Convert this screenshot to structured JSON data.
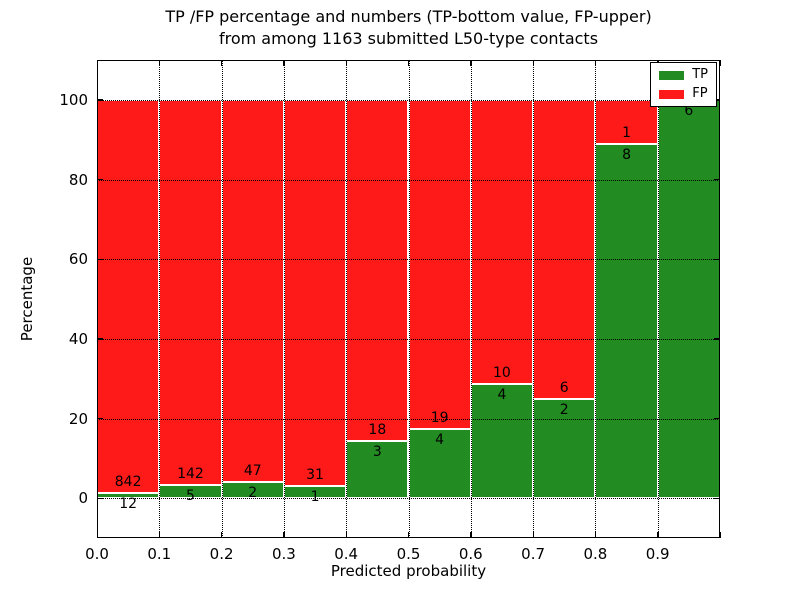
{
  "figure": {
    "background": "#ffffff"
  },
  "chart_data": {
    "type": "bar",
    "stacked": true,
    "title": "TP /FP percentage and numbers (TP-bottom value, FP-upper)\nfrom among 1163 submitted L50-type contacts",
    "xlabel": "Predicted probability",
    "ylabel": "Percentage",
    "xlim": [
      0.0,
      1.0
    ],
    "ylim": [
      -10,
      110
    ],
    "x_ticks": [
      {
        "v": 0.0,
        "label": "0.0"
      },
      {
        "v": 0.1,
        "label": "0.1"
      },
      {
        "v": 0.2,
        "label": "0.2"
      },
      {
        "v": 0.3,
        "label": "0.3"
      },
      {
        "v": 0.4,
        "label": "0.4"
      },
      {
        "v": 0.5,
        "label": "0.5"
      },
      {
        "v": 0.6,
        "label": "0.6"
      },
      {
        "v": 0.7,
        "label": "0.7"
      },
      {
        "v": 0.8,
        "label": "0.8"
      },
      {
        "v": 0.9,
        "label": "0.9"
      },
      {
        "v": 1.0,
        "label": ""
      }
    ],
    "y_ticks": [
      0,
      20,
      40,
      60,
      80,
      100
    ],
    "grid": {
      "style": "dotted",
      "color": "#000000",
      "x_values": [
        0.1,
        0.2,
        0.3,
        0.4,
        0.5,
        0.6,
        0.7,
        0.8,
        0.9
      ],
      "y_values": [
        0,
        20,
        40,
        60,
        80,
        100
      ]
    },
    "series": [
      {
        "name": "TP",
        "color": "#228b22"
      },
      {
        "name": "FP",
        "color": "#ff1a1a"
      }
    ],
    "bins": [
      {
        "range": [
          0.0,
          0.1
        ],
        "tp": 12,
        "fp": 842
      },
      {
        "range": [
          0.1,
          0.2
        ],
        "tp": 5,
        "fp": 142
      },
      {
        "range": [
          0.2,
          0.3
        ],
        "tp": 2,
        "fp": 47
      },
      {
        "range": [
          0.3,
          0.4
        ],
        "tp": 1,
        "fp": 31
      },
      {
        "range": [
          0.4,
          0.5
        ],
        "tp": 3,
        "fp": 18
      },
      {
        "range": [
          0.5,
          0.6
        ],
        "tp": 4,
        "fp": 19
      },
      {
        "range": [
          0.6,
          0.7
        ],
        "tp": 4,
        "fp": 10
      },
      {
        "range": [
          0.7,
          0.8
        ],
        "tp": 2,
        "fp": 6
      },
      {
        "range": [
          0.8,
          0.9
        ],
        "tp": 8,
        "fp": 1
      },
      {
        "range": [
          0.9,
          1.0
        ],
        "tp": 6,
        "fp": 0
      }
    ],
    "legend": {
      "position": "upper right",
      "items": [
        {
          "label": "TP",
          "color": "#228b22"
        },
        {
          "label": "FP",
          "color": "#ff1a1a"
        }
      ]
    }
  }
}
